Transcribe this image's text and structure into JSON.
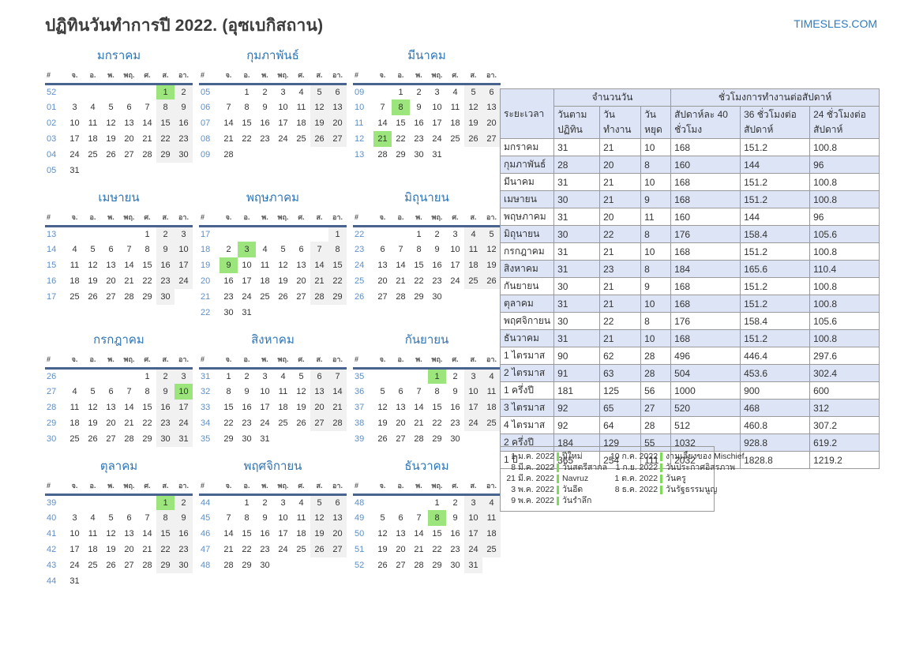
{
  "page": {
    "title": "ปฏิทินวันทำการปี 2022. (อุซเบกิสถาน)",
    "site_link": "TIMESLES.COM"
  },
  "colors": {
    "accent_blue": "#2d74b5",
    "week_number_blue": "#5e8fc8",
    "holiday_green": "#9be57c",
    "weekend_gray": "#f1f1f1",
    "table_alt_blue": "#dce4f6",
    "header_rule_blue": "#47638e"
  },
  "calendar": {
    "weekday_headers": [
      "#",
      "จ.",
      "อ.",
      "พ.",
      "พฤ.",
      "ศ.",
      "ส.",
      "อา."
    ],
    "months": [
      {
        "name": "มกราคม",
        "holidays": [
          "1"
        ],
        "weeks": [
          [
            "52",
            "",
            "",
            "",
            "",
            "",
            "1",
            "2"
          ],
          [
            "01",
            "3",
            "4",
            "5",
            "6",
            "7",
            "8",
            "9"
          ],
          [
            "02",
            "10",
            "11",
            "12",
            "13",
            "14",
            "15",
            "16"
          ],
          [
            "03",
            "17",
            "18",
            "19",
            "20",
            "21",
            "22",
            "23"
          ],
          [
            "04",
            "24",
            "25",
            "26",
            "27",
            "28",
            "29",
            "30"
          ],
          [
            "05",
            "31",
            "",
            "",
            "",
            "",
            "",
            ""
          ]
        ]
      },
      {
        "name": "กุมภาพันธ์",
        "holidays": [],
        "weeks": [
          [
            "05",
            "",
            "1",
            "2",
            "3",
            "4",
            "5",
            "6"
          ],
          [
            "06",
            "7",
            "8",
            "9",
            "10",
            "11",
            "12",
            "13"
          ],
          [
            "07",
            "14",
            "15",
            "16",
            "17",
            "18",
            "19",
            "20"
          ],
          [
            "08",
            "21",
            "22",
            "23",
            "24",
            "25",
            "26",
            "27"
          ],
          [
            "09",
            "28",
            "",
            "",
            "",
            "",
            "",
            ""
          ]
        ]
      },
      {
        "name": "มีนาคม",
        "holidays": [
          "8",
          "21"
        ],
        "weeks": [
          [
            "09",
            "",
            "1",
            "2",
            "3",
            "4",
            "5",
            "6"
          ],
          [
            "10",
            "7",
            "8",
            "9",
            "10",
            "11",
            "12",
            "13"
          ],
          [
            "11",
            "14",
            "15",
            "16",
            "17",
            "18",
            "19",
            "20"
          ],
          [
            "12",
            "21",
            "22",
            "23",
            "24",
            "25",
            "26",
            "27"
          ],
          [
            "13",
            "28",
            "29",
            "30",
            "31",
            "",
            "",
            ""
          ]
        ]
      },
      {
        "name": "เมษายน",
        "holidays": [],
        "weeks": [
          [
            "13",
            "",
            "",
            "",
            "",
            "1",
            "2",
            "3"
          ],
          [
            "14",
            "4",
            "5",
            "6",
            "7",
            "8",
            "9",
            "10"
          ],
          [
            "15",
            "11",
            "12",
            "13",
            "14",
            "15",
            "16",
            "17"
          ],
          [
            "16",
            "18",
            "19",
            "20",
            "21",
            "22",
            "23",
            "24"
          ],
          [
            "17",
            "25",
            "26",
            "27",
            "28",
            "29",
            "30",
            ""
          ]
        ]
      },
      {
        "name": "พฤษภาคม",
        "holidays": [
          "3",
          "9"
        ],
        "weeks": [
          [
            "17",
            "",
            "",
            "",
            "",
            "",
            "",
            "1"
          ],
          [
            "18",
            "2",
            "3",
            "4",
            "5",
            "6",
            "7",
            "8"
          ],
          [
            "19",
            "9",
            "10",
            "11",
            "12",
            "13",
            "14",
            "15"
          ],
          [
            "20",
            "16",
            "17",
            "18",
            "19",
            "20",
            "21",
            "22"
          ],
          [
            "21",
            "23",
            "24",
            "25",
            "26",
            "27",
            "28",
            "29"
          ],
          [
            "22",
            "30",
            "31",
            "",
            "",
            "",
            "",
            ""
          ]
        ]
      },
      {
        "name": "มิถุนายน",
        "holidays": [],
        "weeks": [
          [
            "22",
            "",
            "",
            "1",
            "2",
            "3",
            "4",
            "5"
          ],
          [
            "23",
            "6",
            "7",
            "8",
            "9",
            "10",
            "11",
            "12"
          ],
          [
            "24",
            "13",
            "14",
            "15",
            "16",
            "17",
            "18",
            "19"
          ],
          [
            "25",
            "20",
            "21",
            "22",
            "23",
            "24",
            "25",
            "26"
          ],
          [
            "26",
            "27",
            "28",
            "29",
            "30",
            "",
            "",
            ""
          ]
        ]
      },
      {
        "name": "กรกฎาคม",
        "holidays": [
          "10"
        ],
        "weeks": [
          [
            "26",
            "",
            "",
            "",
            "",
            "1",
            "2",
            "3"
          ],
          [
            "27",
            "4",
            "5",
            "6",
            "7",
            "8",
            "9",
            "10"
          ],
          [
            "28",
            "11",
            "12",
            "13",
            "14",
            "15",
            "16",
            "17"
          ],
          [
            "29",
            "18",
            "19",
            "20",
            "21",
            "22",
            "23",
            "24"
          ],
          [
            "30",
            "25",
            "26",
            "27",
            "28",
            "29",
            "30",
            "31"
          ]
        ]
      },
      {
        "name": "สิงหาคม",
        "holidays": [],
        "weeks": [
          [
            "31",
            "1",
            "2",
            "3",
            "4",
            "5",
            "6",
            "7"
          ],
          [
            "32",
            "8",
            "9",
            "10",
            "11",
            "12",
            "13",
            "14"
          ],
          [
            "33",
            "15",
            "16",
            "17",
            "18",
            "19",
            "20",
            "21"
          ],
          [
            "34",
            "22",
            "23",
            "24",
            "25",
            "26",
            "27",
            "28"
          ],
          [
            "35",
            "29",
            "30",
            "31",
            "",
            "",
            "",
            ""
          ]
        ]
      },
      {
        "name": "กันยายน",
        "holidays": [
          "1"
        ],
        "weeks": [
          [
            "35",
            "",
            "",
            "",
            "1",
            "2",
            "3",
            "4"
          ],
          [
            "36",
            "5",
            "6",
            "7",
            "8",
            "9",
            "10",
            "11"
          ],
          [
            "37",
            "12",
            "13",
            "14",
            "15",
            "16",
            "17",
            "18"
          ],
          [
            "38",
            "19",
            "20",
            "21",
            "22",
            "23",
            "24",
            "25"
          ],
          [
            "39",
            "26",
            "27",
            "28",
            "29",
            "30",
            "",
            ""
          ]
        ]
      },
      {
        "name": "ตุลาคม",
        "holidays": [
          "1"
        ],
        "weeks": [
          [
            "39",
            "",
            "",
            "",
            "",
            "",
            "1",
            "2"
          ],
          [
            "40",
            "3",
            "4",
            "5",
            "6",
            "7",
            "8",
            "9"
          ],
          [
            "41",
            "10",
            "11",
            "12",
            "13",
            "14",
            "15",
            "16"
          ],
          [
            "42",
            "17",
            "18",
            "19",
            "20",
            "21",
            "22",
            "23"
          ],
          [
            "43",
            "24",
            "25",
            "26",
            "27",
            "28",
            "29",
            "30"
          ],
          [
            "44",
            "31",
            "",
            "",
            "",
            "",
            "",
            ""
          ]
        ]
      },
      {
        "name": "พฤศจิกายน",
        "holidays": [],
        "weeks": [
          [
            "44",
            "",
            "1",
            "2",
            "3",
            "4",
            "5",
            "6"
          ],
          [
            "45",
            "7",
            "8",
            "9",
            "10",
            "11",
            "12",
            "13"
          ],
          [
            "46",
            "14",
            "15",
            "16",
            "17",
            "18",
            "19",
            "20"
          ],
          [
            "47",
            "21",
            "22",
            "23",
            "24",
            "25",
            "26",
            "27"
          ],
          [
            "48",
            "28",
            "29",
            "30",
            "",
            "",
            "",
            ""
          ]
        ]
      },
      {
        "name": "ธันวาคม",
        "holidays": [
          "8"
        ],
        "weeks": [
          [
            "48",
            "",
            "",
            "",
            "1",
            "2",
            "3",
            "4"
          ],
          [
            "49",
            "5",
            "6",
            "7",
            "8",
            "9",
            "10",
            "11"
          ],
          [
            "50",
            "12",
            "13",
            "14",
            "15",
            "16",
            "17",
            "18"
          ],
          [
            "51",
            "19",
            "20",
            "21",
            "22",
            "23",
            "24",
            "25"
          ],
          [
            "52",
            "26",
            "27",
            "28",
            "29",
            "30",
            "31",
            ""
          ]
        ]
      }
    ]
  },
  "summary_table": {
    "col_period": "ระยะเวลา",
    "group_days": "จำนวนวัน",
    "group_hours": "ชั่วโมงการทำงานต่อสัปดาห์",
    "subheaders": [
      "วันตามปฏิทิน",
      "วันทำงาน",
      "วันหยุด",
      "สัปดาห์ละ 40 ชั่วโมง",
      "36 ชั่วโมงต่อสัปดาห์",
      "24 ชั่วโมงต่อสัปดาห์"
    ],
    "rows": [
      [
        "มกราคม",
        "31",
        "21",
        "10",
        "168",
        "151.2",
        "100.8"
      ],
      [
        "กุมภาพันธ์",
        "28",
        "20",
        "8",
        "160",
        "144",
        "96"
      ],
      [
        "มีนาคม",
        "31",
        "21",
        "10",
        "168",
        "151.2",
        "100.8"
      ],
      [
        "เมษายน",
        "30",
        "21",
        "9",
        "168",
        "151.2",
        "100.8"
      ],
      [
        "พฤษภาคม",
        "31",
        "20",
        "11",
        "160",
        "144",
        "96"
      ],
      [
        "มิถุนายน",
        "30",
        "22",
        "8",
        "176",
        "158.4",
        "105.6"
      ],
      [
        "กรกฎาคม",
        "31",
        "21",
        "10",
        "168",
        "151.2",
        "100.8"
      ],
      [
        "สิงหาคม",
        "31",
        "23",
        "8",
        "184",
        "165.6",
        "110.4"
      ],
      [
        "กันยายน",
        "30",
        "21",
        "9",
        "168",
        "151.2",
        "100.8"
      ],
      [
        "ตุลาคม",
        "31",
        "21",
        "10",
        "168",
        "151.2",
        "100.8"
      ],
      [
        "พฤศจิกายน",
        "30",
        "22",
        "8",
        "176",
        "158.4",
        "105.6"
      ],
      [
        "ธันวาคม",
        "31",
        "21",
        "10",
        "168",
        "151.2",
        "100.8"
      ],
      [
        "1 ไตรมาส",
        "90",
        "62",
        "28",
        "496",
        "446.4",
        "297.6"
      ],
      [
        "2 ไตรมาส",
        "91",
        "63",
        "28",
        "504",
        "453.6",
        "302.4"
      ],
      [
        "1 ครึ่งปี",
        "181",
        "125",
        "56",
        "1000",
        "900",
        "600"
      ],
      [
        "3 ไตรมาส",
        "92",
        "65",
        "27",
        "520",
        "468",
        "312"
      ],
      [
        "4 ไตรมาส",
        "92",
        "64",
        "28",
        "512",
        "460.8",
        "307.2"
      ],
      [
        "2 ครึ่งปี",
        "184",
        "129",
        "55",
        "1032",
        "928.8",
        "619.2"
      ],
      [
        "1 ปี",
        "365",
        "254",
        "111",
        "2032",
        "1828.8",
        "1219.2"
      ]
    ]
  },
  "legend": {
    "columns": [
      [
        {
          "date": "1 ม.ค. 2022",
          "label": "ปีใหม่"
        },
        {
          "date": "8 มี.ค. 2022",
          "label": "วันสตรีสากล"
        },
        {
          "date": "21 มี.ค. 2022",
          "label": "Navruz"
        },
        {
          "date": "3 พ.ค. 2022",
          "label": "วันอีด"
        },
        {
          "date": "9 พ.ค. 2022",
          "label": "วันรำลึก"
        }
      ],
      [
        {
          "date": "10 ก.ค. 2022",
          "label": "งานเลี้ยงของ Mischief"
        },
        {
          "date": "1 ก.ย. 2022",
          "label": "วันประกาศอิสรภาพ"
        },
        {
          "date": "1 ต.ค. 2022",
          "label": "วันครู"
        },
        {
          "date": "8 ธ.ค. 2022",
          "label": "วันรัฐธรรมนูญ"
        }
      ]
    ]
  }
}
